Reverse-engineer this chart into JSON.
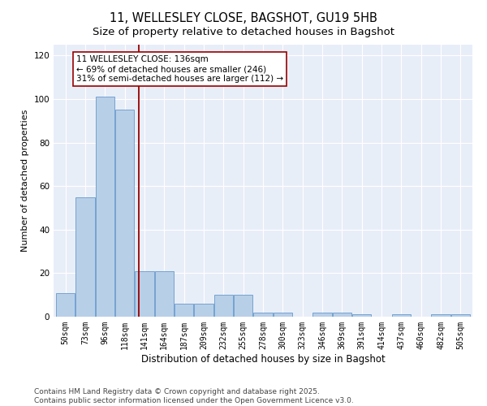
{
  "title": "11, WELLESLEY CLOSE, BAGSHOT, GU19 5HB",
  "subtitle": "Size of property relative to detached houses in Bagshot",
  "xlabel": "Distribution of detached houses by size in Bagshot",
  "ylabel": "Number of detached properties",
  "categories": [
    "50sqm",
    "73sqm",
    "96sqm",
    "118sqm",
    "141sqm",
    "164sqm",
    "187sqm",
    "209sqm",
    "232sqm",
    "255sqm",
    "278sqm",
    "300sqm",
    "323sqm",
    "346sqm",
    "369sqm",
    "391sqm",
    "414sqm",
    "437sqm",
    "460sqm",
    "482sqm",
    "505sqm"
  ],
  "values": [
    11,
    55,
    101,
    95,
    21,
    21,
    6,
    6,
    10,
    10,
    2,
    2,
    0,
    2,
    2,
    1,
    0,
    1,
    0,
    1,
    1
  ],
  "bar_color": "#b8cfe8",
  "bar_edge_color": "#6699cc",
  "vline_x": 3.72,
  "vline_color": "#990000",
  "annotation_text": "11 WELLESLEY CLOSE: 136sqm\n← 69% of detached houses are smaller (246)\n31% of semi-detached houses are larger (112) →",
  "annotation_box_color": "white",
  "annotation_box_edge_color": "#990000",
  "ylim": [
    0,
    125
  ],
  "yticks": [
    0,
    20,
    40,
    60,
    80,
    100,
    120
  ],
  "background_color": "#e8eef8",
  "grid_color": "white",
  "footer_text": "Contains HM Land Registry data © Crown copyright and database right 2025.\nContains public sector information licensed under the Open Government Licence v3.0.",
  "title_fontsize": 10.5,
  "subtitle_fontsize": 9.5,
  "xlabel_fontsize": 8.5,
  "ylabel_fontsize": 8,
  "tick_fontsize": 7,
  "annotation_fontsize": 7.5,
  "footer_fontsize": 6.5
}
